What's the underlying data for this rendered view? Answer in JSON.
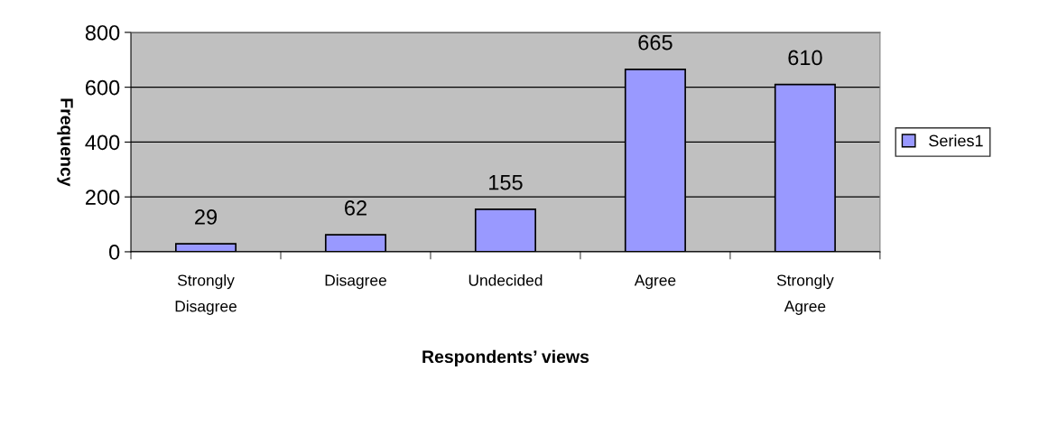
{
  "chart_data": {
    "type": "bar",
    "xlabel": "Respondents’ views",
    "ylabel": "Frequency",
    "categories": [
      "Strongly\nDisagree",
      "Disagree",
      "Undecided",
      "Agree",
      "Strongly\nAgree"
    ],
    "series": [
      {
        "name": "Series1",
        "color": "#9999ff",
        "values": [
          29,
          62,
          155,
          665,
          610
        ]
      }
    ],
    "ylim": [
      0,
      800
    ],
    "yticks": [
      0,
      200,
      400,
      600,
      800
    ],
    "grid": "y",
    "legend": "right",
    "data_labels": true
  }
}
